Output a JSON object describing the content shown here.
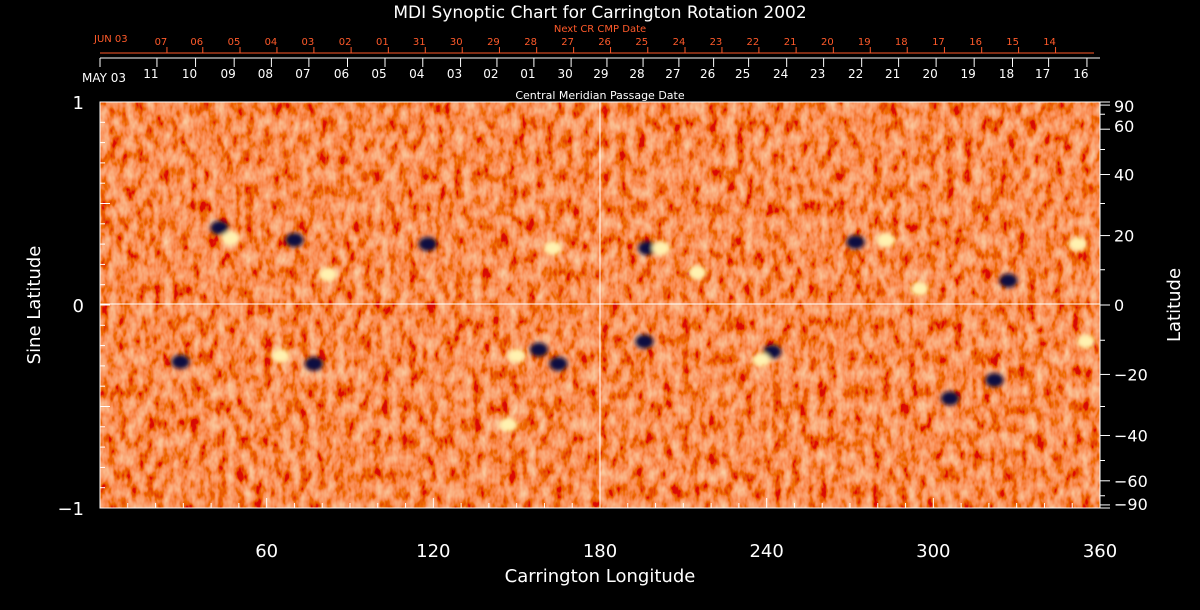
{
  "chart_data": {
    "type": "heatmap",
    "title": "MDI Synoptic Chart for Carrington Rotation 2002",
    "xlabel": "Carrington Longitude",
    "ylabel_left": "Sine Latitude",
    "ylabel_right": "Latitude",
    "top_axis_label": "Central Meridian Passage Date",
    "top_axis2_label": "Next CR CMP Date",
    "xlim": [
      0,
      360
    ],
    "ylim": [
      -1,
      1
    ],
    "x_ticks": [
      60,
      120,
      180,
      240,
      300,
      360
    ],
    "y_left_ticks": [
      {
        "value": 1,
        "label": "1"
      },
      {
        "value": 0,
        "label": "0"
      },
      {
        "value": -1,
        "label": "−1"
      }
    ],
    "y_right_ticks": [
      {
        "value": 90,
        "label": "90"
      },
      {
        "value": 60,
        "label": "60"
      },
      {
        "value": 40,
        "label": "40"
      },
      {
        "value": 20,
        "label": "20"
      },
      {
        "value": 0,
        "label": "0"
      },
      {
        "value": -20,
        "label": "−20"
      },
      {
        "value": -40,
        "label": "−40"
      },
      {
        "value": -60,
        "label": "−60"
      },
      {
        "value": -90,
        "label": "−90"
      }
    ],
    "cmp_start_label": "MAY 03",
    "cmp_dates": [
      {
        "lon": 20.5,
        "label": "11"
      },
      {
        "lon": 34.4,
        "label": "10"
      },
      {
        "lon": 48.3,
        "label": "09"
      },
      {
        "lon": 61.7,
        "label": "08"
      },
      {
        "lon": 75.2,
        "label": "07"
      },
      {
        "lon": 89.1,
        "label": "06"
      },
      {
        "lon": 102.6,
        "label": "05"
      },
      {
        "lon": 116.2,
        "label": "04"
      },
      {
        "lon": 129.8,
        "label": "03"
      },
      {
        "lon": 142.9,
        "label": "02"
      },
      {
        "lon": 156.2,
        "label": "01"
      },
      {
        "lon": 169.6,
        "label": "30"
      },
      {
        "lon": 182.5,
        "label": "29"
      },
      {
        "lon": 195.5,
        "label": "28"
      },
      {
        "lon": 208.4,
        "label": "27"
      },
      {
        "lon": 220.9,
        "label": "26"
      },
      {
        "lon": 233.5,
        "label": "25"
      },
      {
        "lon": 247.2,
        "label": "24"
      },
      {
        "lon": 260.5,
        "label": "23"
      },
      {
        "lon": 274.2,
        "label": "22"
      },
      {
        "lon": 287.5,
        "label": "21"
      },
      {
        "lon": 301.0,
        "label": "20"
      },
      {
        "lon": 314.7,
        "label": "19"
      },
      {
        "lon": 328.5,
        "label": "18"
      },
      {
        "lon": 341.5,
        "label": "17"
      },
      {
        "lon": 355.3,
        "label": "16"
      }
    ],
    "next_cr_start_label": "JUN 03",
    "next_cr_dates": [
      {
        "lon": 24.1,
        "label": "07"
      },
      {
        "lon": 37.0,
        "label": "06"
      },
      {
        "lon": 50.4,
        "label": "05"
      },
      {
        "lon": 63.7,
        "label": "04"
      },
      {
        "lon": 77.0,
        "label": "03"
      },
      {
        "lon": 90.4,
        "label": "02"
      },
      {
        "lon": 103.8,
        "label": "01"
      },
      {
        "lon": 117.1,
        "label": "31"
      },
      {
        "lon": 130.4,
        "label": "30"
      },
      {
        "lon": 143.8,
        "label": "29"
      },
      {
        "lon": 157.2,
        "label": "28"
      },
      {
        "lon": 170.5,
        "label": "27"
      },
      {
        "lon": 183.8,
        "label": "26"
      },
      {
        "lon": 197.2,
        "label": "25"
      },
      {
        "lon": 210.6,
        "label": "24"
      },
      {
        "lon": 223.9,
        "label": "23"
      },
      {
        "lon": 237.2,
        "label": "22"
      },
      {
        "lon": 250.6,
        "label": "21"
      },
      {
        "lon": 264.0,
        "label": "20"
      },
      {
        "lon": 277.3,
        "label": "19"
      },
      {
        "lon": 290.6,
        "label": "18"
      },
      {
        "lon": 304.0,
        "label": "17"
      },
      {
        "lon": 317.4,
        "label": "16"
      },
      {
        "lon": 330.7,
        "label": "15"
      },
      {
        "lon": 344.0,
        "label": "14"
      }
    ],
    "colors": {
      "background_field": "#e0501a",
      "positive_polarity": "#fff2b0",
      "negative_polarity": "#0a0a40",
      "axis": "#ffffff",
      "secondary_axis": "#ff5a2a"
    },
    "active_regions": [
      {
        "lon": 47,
        "sinlat": 0.33,
        "polarity": "positive"
      },
      {
        "lon": 43,
        "sinlat": 0.38,
        "polarity": "negative"
      },
      {
        "lon": 70,
        "sinlat": 0.32,
        "polarity": "negative"
      },
      {
        "lon": 82,
        "sinlat": 0.15,
        "polarity": "positive"
      },
      {
        "lon": 118,
        "sinlat": 0.3,
        "polarity": "negative"
      },
      {
        "lon": 150,
        "sinlat": -0.25,
        "polarity": "positive"
      },
      {
        "lon": 158,
        "sinlat": -0.22,
        "polarity": "negative"
      },
      {
        "lon": 165,
        "sinlat": -0.29,
        "polarity": "negative"
      },
      {
        "lon": 163,
        "sinlat": 0.28,
        "polarity": "positive"
      },
      {
        "lon": 147,
        "sinlat": -0.59,
        "polarity": "positive"
      },
      {
        "lon": 197,
        "sinlat": 0.28,
        "polarity": "negative"
      },
      {
        "lon": 202,
        "sinlat": 0.28,
        "polarity": "positive"
      },
      {
        "lon": 215,
        "sinlat": 0.16,
        "polarity": "positive"
      },
      {
        "lon": 242,
        "sinlat": -0.23,
        "polarity": "negative"
      },
      {
        "lon": 238,
        "sinlat": -0.27,
        "polarity": "positive"
      },
      {
        "lon": 272,
        "sinlat": 0.31,
        "polarity": "negative"
      },
      {
        "lon": 283,
        "sinlat": 0.32,
        "polarity": "positive"
      },
      {
        "lon": 295,
        "sinlat": 0.08,
        "polarity": "positive"
      },
      {
        "lon": 327,
        "sinlat": 0.12,
        "polarity": "negative"
      },
      {
        "lon": 352,
        "sinlat": 0.3,
        "polarity": "positive"
      },
      {
        "lon": 355,
        "sinlat": -0.18,
        "polarity": "positive"
      },
      {
        "lon": 29,
        "sinlat": -0.28,
        "polarity": "negative"
      },
      {
        "lon": 77,
        "sinlat": -0.29,
        "polarity": "negative"
      },
      {
        "lon": 65,
        "sinlat": -0.25,
        "polarity": "positive"
      },
      {
        "lon": 306,
        "sinlat": -0.46,
        "polarity": "negative"
      },
      {
        "lon": 322,
        "sinlat": -0.37,
        "polarity": "negative"
      },
      {
        "lon": 196,
        "sinlat": -0.18,
        "polarity": "negative"
      }
    ]
  }
}
